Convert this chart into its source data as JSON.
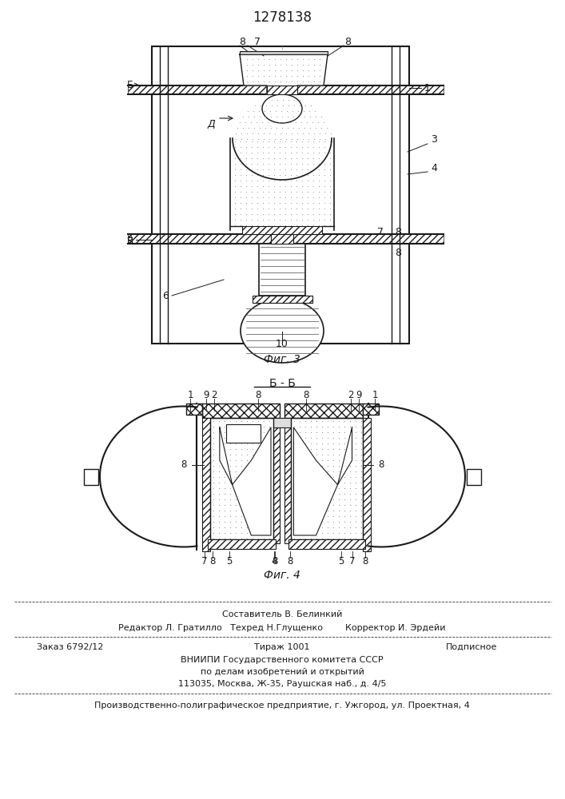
{
  "title": "1278138",
  "fig3_label": "Фиг. 3",
  "fig4_label": "Фиг. 4",
  "section_label": "Б - Б",
  "line_color": "#1a1a1a",
  "footer_line1": "Составитель В. Белинкий",
  "footer_line2": "Редактор Л. Гратилло   Техред Н.Глущенко        Корректор И. Эрдейи",
  "footer_line3a": "Заказ 6792/12",
  "footer_line3b": "Тираж 1001",
  "footer_line3c": "Подписное",
  "footer_line4": "ВНИИПИ Государственного комитета СССР",
  "footer_line5": "по делам изобретений и открытий",
  "footer_line6": "113035, Москва, Ж-35, Раушская наб., д. 4/5",
  "footer_line7": "Производственно-полиграфическое предприятие, г. Ужгород, ул. Проектная, 4"
}
